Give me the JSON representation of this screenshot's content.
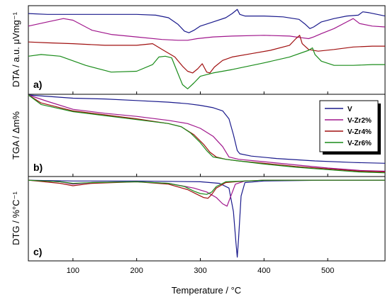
{
  "chart_data": {
    "type": "line",
    "xlabel": "Temperature / °C",
    "xlim": [
      30,
      590
    ],
    "xticks": [
      100,
      200,
      300,
      400,
      500
    ],
    "legend": {
      "placement": "inside-right-panel-b",
      "entries": [
        "V",
        "V-Zr2%",
        "V-Zr4%",
        "V-Zr6%"
      ]
    },
    "colors": {
      "V": "#1a1a8c",
      "V-Zr2%": "#a0168c",
      "V-Zr4%": "#a01010",
      "V-Zr6%": "#1a8c1a"
    },
    "panels": [
      {
        "label": "a)",
        "ylabel": "DTA / a.u. μVmg⁻¹",
        "ylim": [
          0,
          10
        ],
        "series": [
          {
            "name": "V",
            "x": [
              30,
              60,
              100,
              150,
              200,
              230,
              250,
              265,
              275,
              282,
              290,
              300,
              320,
              340,
              350,
              355,
              358,
              362,
              370,
              400,
              430,
              455,
              465,
              472,
              478,
              490,
              510,
              530,
              548,
              555,
              565,
              590
            ],
            "y": [
              9.4,
              9.3,
              9.3,
              9.3,
              9.3,
              9.2,
              8.9,
              8.1,
              7.3,
              7.1,
              7.4,
              7.9,
              8.4,
              8.9,
              9.4,
              9.7,
              9.9,
              9.3,
              9.1,
              9.1,
              9.0,
              8.7,
              8.1,
              7.6,
              7.8,
              8.4,
              8.8,
              9.1,
              9.2,
              9.6,
              9.5,
              9.1
            ]
          },
          {
            "name": "V-Zr2%",
            "x": [
              30,
              60,
              85,
              100,
              130,
              160,
              200,
              240,
              265,
              280,
              295,
              320,
              350,
              400,
              440,
              460,
              470,
              478,
              490,
              510,
              530,
              540,
              550,
              570,
              590
            ],
            "y": [
              7.9,
              8.4,
              8.8,
              8.6,
              7.4,
              6.9,
              6.6,
              6.3,
              6.2,
              6.2,
              6.4,
              6.6,
              6.7,
              6.8,
              6.7,
              6.5,
              6.4,
              6.6,
              7.0,
              7.6,
              8.4,
              8.8,
              8.2,
              7.9,
              7.8
            ]
          },
          {
            "name": "V-Zr4%",
            "x": [
              30,
              60,
              100,
              150,
              200,
              225,
              240,
              260,
              272,
              280,
              288,
              296,
              303,
              310,
              315,
              322,
              335,
              350,
              380,
              410,
              440,
              450,
              456,
              460,
              470,
              485,
              510,
              540,
              570,
              590
            ],
            "y": [
              6.0,
              5.9,
              5.8,
              5.6,
              5.6,
              5.8,
              5.1,
              4.2,
              3.1,
              2.5,
              2.3,
              2.8,
              3.4,
              2.4,
              2.3,
              3.0,
              3.8,
              4.2,
              4.6,
              5.0,
              5.6,
              6.4,
              6.8,
              5.8,
              5.1,
              4.9,
              5.1,
              5.4,
              5.5,
              5.5
            ]
          },
          {
            "name": "V-Zr6%",
            "x": [
              30,
              50,
              80,
              120,
              160,
              200,
              225,
              235,
              245,
              255,
              265,
              272,
              280,
              290,
              300,
              320,
              350,
              400,
              440,
              470,
              476,
              480,
              490,
              510,
              540,
              570,
              590
            ],
            "y": [
              4.3,
              4.5,
              4.3,
              3.2,
              2.4,
              2.5,
              3.3,
              4.2,
              4.3,
              4.1,
              2.2,
              0.9,
              0.4,
              1.1,
              1.9,
              2.3,
              2.7,
              3.5,
              4.2,
              5.0,
              5.3,
              4.5,
              3.7,
              3.2,
              3.2,
              3.3,
              3.3
            ]
          }
        ]
      },
      {
        "label": "b)",
        "ylabel": "TGA / Δm%",
        "ylim": [
          0,
          100
        ],
        "series": [
          {
            "name": "V",
            "x": [
              30,
              100,
              150,
              200,
              250,
              280,
              300,
              320,
              335,
              345,
              352,
              358,
              362,
              380,
              420,
              480,
              540,
              590
            ],
            "y": [
              100,
              96,
              95,
              93,
              91,
              89,
              87,
              84,
              80,
              70,
              50,
              30,
              26,
              23,
              20,
              17,
              15,
              14
            ]
          },
          {
            "name": "V-Zr2%",
            "x": [
              30,
              60,
              100,
              150,
              200,
              250,
              280,
              300,
              320,
              335,
              345,
              360,
              400,
              450,
              500,
              550,
              590
            ],
            "y": [
              100,
              92,
              82,
              77,
              73,
              68,
              64,
              58,
              48,
              35,
              22,
              19,
              16,
              12,
              8,
              5,
              4
            ]
          },
          {
            "name": "V-Zr4%",
            "x": [
              30,
              50,
              100,
              150,
              200,
              250,
              270,
              290,
              305,
              315,
              325,
              340,
              360,
              400,
              450,
              500,
              550,
              590
            ],
            "y": [
              100,
              90,
              80,
              75,
              70,
              64,
              60,
              50,
              38,
              28,
              22,
              19,
              17,
              14,
              10,
              7,
              4,
              3
            ]
          },
          {
            "name": "V-Zr6%",
            "x": [
              30,
              50,
              100,
              150,
              200,
              250,
              270,
              285,
              300,
              310,
              320,
              340,
              360,
              400,
              450,
              500,
              550,
              590
            ],
            "y": [
              100,
              88,
              79,
              74,
              69,
              64,
              60,
              52,
              40,
              30,
              22,
              19,
              17,
              13,
              9,
              6,
              3,
              2
            ]
          }
        ]
      },
      {
        "label": "c)",
        "ylabel": "DTG / %°C⁻¹",
        "ylim": [
          -1.0,
          0.02
        ],
        "series": [
          {
            "name": "V",
            "x": [
              30,
              100,
              200,
              300,
              330,
              345,
              352,
              356,
              358,
              360,
              364,
              370,
              400,
              500,
              590
            ],
            "y": [
              0,
              -0.01,
              -0.01,
              -0.02,
              -0.04,
              -0.1,
              -0.4,
              -0.8,
              -0.98,
              -0.75,
              -0.2,
              -0.03,
              -0.01,
              0,
              0
            ]
          },
          {
            "name": "V-Zr2%",
            "x": [
              30,
              80,
              100,
              130,
              200,
              250,
              290,
              310,
              325,
              335,
              342,
              348,
              355,
              370,
              400,
              500,
              590
            ],
            "y": [
              0,
              -0.02,
              -0.05,
              -0.03,
              -0.02,
              -0.04,
              -0.1,
              -0.15,
              -0.22,
              -0.3,
              -0.33,
              -0.2,
              -0.05,
              -0.01,
              0,
              0,
              0
            ]
          },
          {
            "name": "V-Zr4%",
            "x": [
              30,
              80,
              100,
              130,
              200,
              250,
              280,
              295,
              305,
              312,
              318,
              325,
              340,
              370,
              400,
              500,
              590
            ],
            "y": [
              0,
              -0.04,
              -0.07,
              -0.04,
              -0.02,
              -0.05,
              -0.12,
              -0.18,
              -0.22,
              -0.23,
              -0.18,
              -0.1,
              -0.03,
              -0.01,
              0,
              0,
              0
            ]
          },
          {
            "name": "V-Zr6%",
            "x": [
              30,
              80,
              100,
              130,
              200,
              250,
              275,
              290,
              300,
              310,
              318,
              325,
              340,
              370,
              400,
              500,
              590
            ],
            "y": [
              0,
              -0.02,
              -0.04,
              -0.03,
              -0.02,
              -0.04,
              -0.08,
              -0.14,
              -0.17,
              -0.18,
              -0.15,
              -0.08,
              -0.02,
              -0.01,
              0,
              0,
              0
            ]
          }
        ]
      }
    ]
  }
}
